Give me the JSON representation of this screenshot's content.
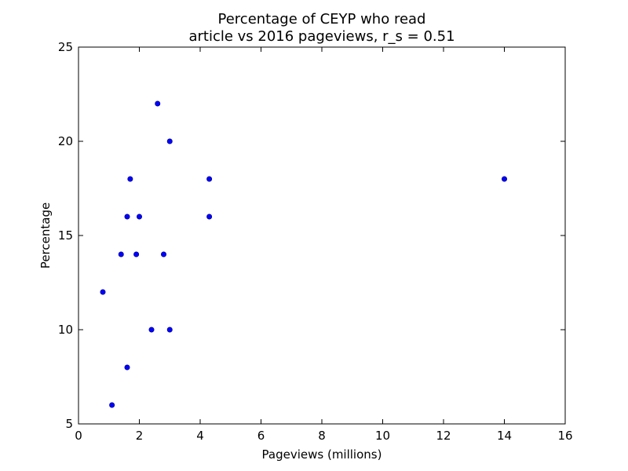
{
  "chart_data": {
    "type": "scatter",
    "title_lines": [
      "Percentage of CEYP who read",
      "article vs 2016 pageviews, r_s = 0.51"
    ],
    "xlabel": "Pageviews (millions)",
    "ylabel": "Percentage",
    "xlim": [
      0,
      16
    ],
    "ylim": [
      5,
      25
    ],
    "xticks": [
      0,
      2,
      4,
      6,
      8,
      10,
      12,
      14,
      16
    ],
    "yticks": [
      5,
      10,
      15,
      20,
      25
    ],
    "grid": false,
    "marker_color": "#0000ff",
    "points": [
      {
        "x": 2.6,
        "y": 22
      },
      {
        "x": 3.0,
        "y": 20
      },
      {
        "x": 1.7,
        "y": 18
      },
      {
        "x": 4.3,
        "y": 18
      },
      {
        "x": 14.0,
        "y": 18
      },
      {
        "x": 1.6,
        "y": 16
      },
      {
        "x": 2.0,
        "y": 16
      },
      {
        "x": 4.3,
        "y": 16
      },
      {
        "x": 1.4,
        "y": 14
      },
      {
        "x": 1.9,
        "y": 14
      },
      {
        "x": 2.8,
        "y": 14
      },
      {
        "x": 0.8,
        "y": 12
      },
      {
        "x": 2.4,
        "y": 10
      },
      {
        "x": 3.0,
        "y": 10
      },
      {
        "x": 1.6,
        "y": 8
      },
      {
        "x": 1.1,
        "y": 6
      }
    ]
  }
}
